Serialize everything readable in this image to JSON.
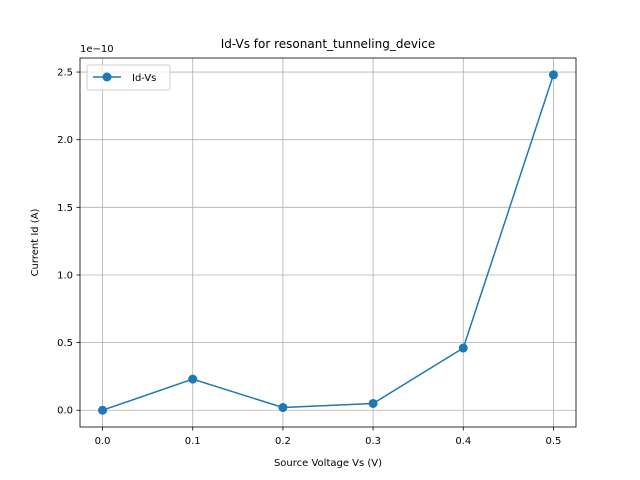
{
  "chart_data": {
    "type": "line",
    "title": "Id-Vs for resonant_tunneling_device",
    "xlabel": "Source Voltage Vs (V)",
    "ylabel": "Current Id (A)",
    "offset_text": "1e−10",
    "y_scale_factor": 1e-10,
    "x": [
      0.0,
      0.1,
      0.2,
      0.3,
      0.4,
      0.5
    ],
    "series": [
      {
        "name": "Id-Vs",
        "values": [
          0.0,
          2.3e-11,
          2e-12,
          5e-12,
          4.6e-11,
          2.48e-10
        ],
        "color": "#1f77b4",
        "marker": "circle"
      }
    ],
    "xlim": [
      -0.025,
      0.525
    ],
    "ylim": [
      -1.24e-11,
      2.604e-10
    ],
    "x_ticks": [
      0.0,
      0.1,
      0.2,
      0.3,
      0.4,
      0.5
    ],
    "x_tick_labels": [
      "0.0",
      "0.1",
      "0.2",
      "0.3",
      "0.4",
      "0.5"
    ],
    "y_ticks": [
      0.0,
      5e-11,
      1e-10,
      1.5e-10,
      2e-10,
      2.5e-10
    ],
    "y_tick_labels": [
      "0.0",
      "0.5",
      "1.0",
      "1.5",
      "2.0",
      "2.5"
    ],
    "grid": true,
    "legend_position": "top-left"
  }
}
